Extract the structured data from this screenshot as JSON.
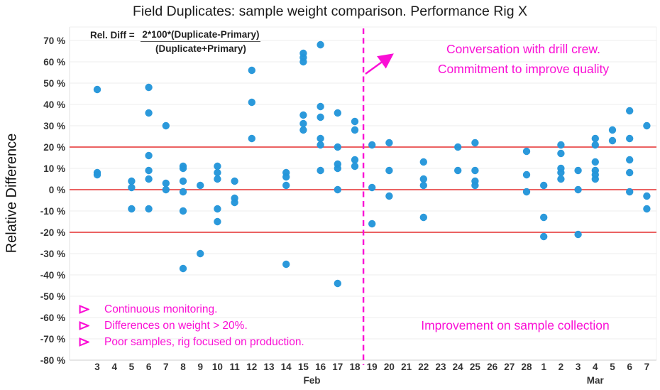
{
  "chart_data": {
    "type": "scatter",
    "title": "Field Duplicates: sample weight comparison. Performance Rig X",
    "ylabel": "Relative Difference",
    "y_ticks": [
      70,
      60,
      50,
      40,
      30,
      20,
      10,
      0,
      -10,
      -20,
      -30,
      -40,
      -50,
      -60,
      -70,
      -80
    ],
    "y_tick_suffix": " %",
    "ylim": [
      -80,
      75
    ],
    "grid": true,
    "x_categories": [
      "3",
      "4",
      "5",
      "6",
      "7",
      "8",
      "9",
      "10",
      "11",
      "12",
      "13",
      "14",
      "15",
      "16",
      "17",
      "18",
      "19",
      "20",
      "21",
      "22",
      "23",
      "24",
      "25",
      "26",
      "27",
      "28",
      "1",
      "2",
      "3",
      "4",
      "5",
      "6",
      "7"
    ],
    "x_month_labels": [
      {
        "text": "Feb",
        "index": 12.5
      },
      {
        "text": "Mar",
        "index": 29
      }
    ],
    "reference_lines": {
      "values": [
        20,
        0,
        -20
      ]
    },
    "divider": {
      "between_indices": [
        15,
        16
      ],
      "style": "dashed"
    },
    "series": [
      {
        "points_by_day": [
          {
            "day": "Feb 3",
            "values": [
              47,
              8,
              7
            ]
          },
          {
            "day": "Feb 4",
            "values": []
          },
          {
            "day": "Feb 5",
            "values": [
              4,
              1,
              -9
            ]
          },
          {
            "day": "Feb 6",
            "values": [
              48,
              36,
              16,
              9,
              5,
              -9
            ]
          },
          {
            "day": "Feb 7",
            "values": [
              30,
              3,
              0
            ]
          },
          {
            "day": "Feb 8",
            "values": [
              11,
              10,
              4,
              -1,
              -10,
              -37
            ]
          },
          {
            "day": "Feb 9",
            "values": [
              2,
              -30
            ]
          },
          {
            "day": "Feb 10",
            "values": [
              11,
              8,
              5,
              -9,
              -15
            ]
          },
          {
            "day": "Feb 11",
            "values": [
              4,
              -4,
              -6
            ]
          },
          {
            "day": "Feb 12",
            "values": [
              56,
              41,
              24
            ]
          },
          {
            "day": "Feb 13",
            "values": []
          },
          {
            "day": "Feb 14",
            "values": [
              8,
              6,
              2,
              -35
            ]
          },
          {
            "day": "Feb 15",
            "values": [
              64,
              62,
              60,
              35,
              31,
              28
            ]
          },
          {
            "day": "Feb 16",
            "values": [
              68,
              39,
              34,
              24,
              21,
              9
            ]
          },
          {
            "day": "Feb 17",
            "values": [
              36,
              20,
              12,
              10,
              0,
              -44
            ]
          },
          {
            "day": "Feb 18",
            "values": [
              32,
              28,
              14,
              11
            ]
          },
          {
            "day": "Feb 19",
            "values": [
              21,
              1,
              -16
            ]
          },
          {
            "day": "Feb 20",
            "values": [
              22,
              9,
              -3
            ]
          },
          {
            "day": "Feb 21",
            "values": []
          },
          {
            "day": "Feb 22",
            "values": [
              13,
              5,
              2,
              -13
            ]
          },
          {
            "day": "Feb 23",
            "values": []
          },
          {
            "day": "Feb 24",
            "values": [
              20,
              9
            ]
          },
          {
            "day": "Feb 25",
            "values": [
              22,
              9,
              4,
              2
            ]
          },
          {
            "day": "Feb 26",
            "values": []
          },
          {
            "day": "Feb 27",
            "values": []
          },
          {
            "day": "Feb 28",
            "values": [
              18,
              7,
              -1
            ]
          },
          {
            "day": "Mar 1",
            "values": [
              2,
              -13,
              -22
            ]
          },
          {
            "day": "Mar 2",
            "values": [
              21,
              17,
              10,
              8,
              5
            ]
          },
          {
            "day": "Mar 3",
            "values": [
              9,
              0,
              -21
            ]
          },
          {
            "day": "Mar 4",
            "values": [
              24,
              21,
              13,
              9,
              7,
              5
            ]
          },
          {
            "day": "Mar 5",
            "values": [
              28,
              23
            ]
          },
          {
            "day": "Mar 6",
            "values": [
              37,
              24,
              14,
              8,
              -1
            ]
          },
          {
            "day": "Mar 7",
            "values": [
              30,
              -3,
              -9
            ]
          }
        ]
      }
    ]
  },
  "formula": {
    "prefix": "Rel. Diff =",
    "numerator": "2*100*(Duplicate-Primary)",
    "denominator": "(Duplicate+Primary)"
  },
  "annotations": {
    "conversation_line1": "Conversation with drill crew.",
    "conversation_line2": "Commitment to improve quality",
    "bullets": [
      "Continuous monitoring.",
      "Differences on weight > 20%.",
      "Poor samples, rig focused on production."
    ],
    "improvement": "Improvement on sample collection",
    "bullet_icon": "arrowhead-right"
  },
  "colors": {
    "dot": "#2496da",
    "reference": "#e84b4b",
    "magenta": "#fa0fd5",
    "grid": "#ededed",
    "axis_text": "#333333"
  }
}
